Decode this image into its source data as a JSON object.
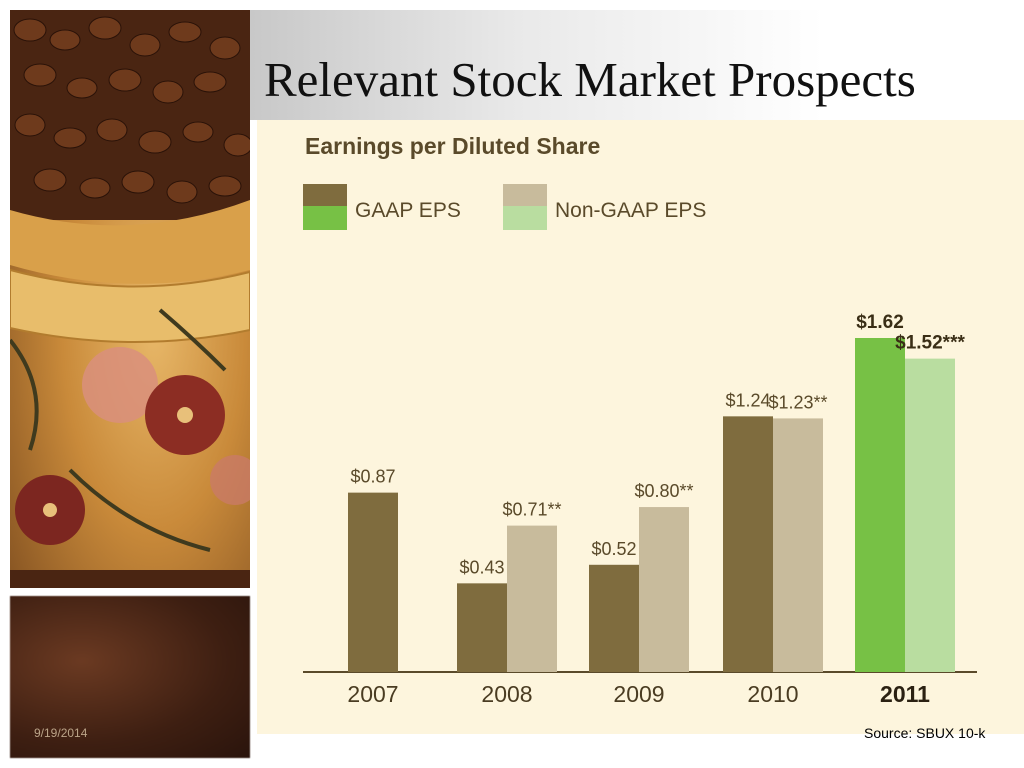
{
  "slide": {
    "title": "Relevant Stock Market Prospects",
    "date": "9/19/2014",
    "source": "Source: SBUX 10-k"
  },
  "images": {
    "top": "coffee-beans-in-mug-photo",
    "bottom": "blurred-coffee-beans-photo"
  },
  "colors": {
    "gaap": "#7f6c3e",
    "non_gaap": "#c8bb9c",
    "gaap_highlight": "#77c145",
    "non_gaap_highlight": "#b9dda0",
    "chart_background": "#fdf5dd"
  },
  "chart_data": {
    "type": "bar",
    "title": "Earnings per Diluted Share",
    "categories": [
      "2007",
      "2008",
      "2009",
      "2010",
      "2011"
    ],
    "highlight_category": "2011",
    "series": [
      {
        "name": "GAAP EPS",
        "values": [
          0.87,
          0.43,
          0.52,
          1.24,
          1.62
        ],
        "labels": [
          "$0.87",
          "$0.43",
          "$0.52",
          "$1.24",
          "$1.62"
        ]
      },
      {
        "name": "Non-GAAP EPS",
        "values": [
          null,
          0.71,
          0.8,
          1.23,
          1.52
        ],
        "labels": [
          "",
          "$0.71**",
          "$0.80**",
          "$1.23**",
          "$1.52***"
        ]
      }
    ],
    "ylim": [
      0,
      1.62
    ],
    "grid": false,
    "legend": "top-left"
  }
}
